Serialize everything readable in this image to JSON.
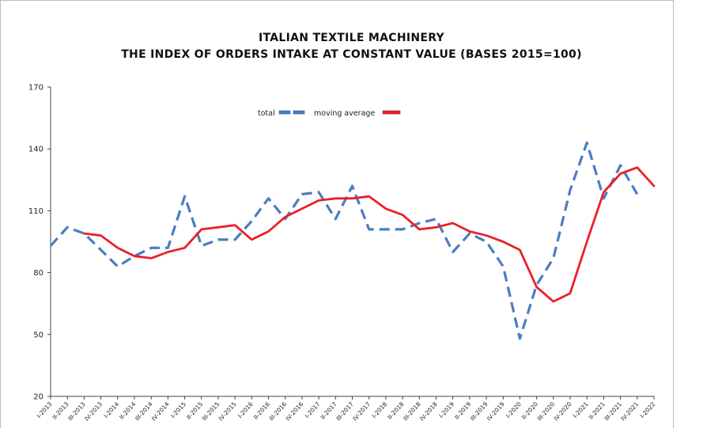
{
  "chart_data": {
    "type": "line",
    "title": "ITALIAN TEXTILE MACHINERY",
    "subtitle": "THE INDEX OF ORDERS INTAKE AT CONSTANT VALUE (BASES 2015=100)",
    "xlabel": "",
    "ylabel": "",
    "ylim": [
      20,
      170
    ],
    "yticks": [
      20,
      50,
      80,
      110,
      140,
      170
    ],
    "grid": false,
    "legend_position": "top-center",
    "categories": [
      "I-2013",
      "II-2013",
      "III-2013",
      "IV-2013",
      "I-2014",
      "II-2014",
      "III-2014",
      "IV-2014",
      "I-2015",
      "II-2015",
      "III-2015",
      "IV-2015",
      "I-2016",
      "II-2016",
      "III-2016",
      "IV-2016",
      "I-2017",
      "II-2017",
      "III-2017",
      "IV-2017",
      "I-2018",
      "II-2018",
      "III-2018",
      "IV-2018",
      "I-2019",
      "II-2019",
      "III-2019",
      "IV-2019",
      "I-2020",
      "II-2020",
      "III-2020",
      "IV-2020",
      "I-2021",
      "II-2021",
      "III-2021",
      "IV-2021",
      "I-2022"
    ],
    "series": [
      {
        "name": "total",
        "color": "#4a7ec0",
        "style": "dashed",
        "values": [
          93,
          102,
          99,
          91,
          83,
          88,
          92,
          92,
          117,
          93,
          96,
          96,
          105,
          116,
          106,
          118,
          119,
          106,
          122,
          101,
          101,
          101,
          104,
          106,
          90,
          99,
          95,
          83,
          48,
          74,
          87,
          120,
          143,
          116,
          132,
          118,
          null
        ]
      },
      {
        "name": "moving average",
        "color": "#e8202a",
        "style": "solid",
        "values": [
          null,
          null,
          99,
          98,
          92,
          88,
          87,
          90,
          92,
          101,
          102,
          103,
          96,
          100,
          107,
          111,
          115,
          116,
          116,
          117,
          111,
          108,
          101,
          102,
          104,
          100,
          98,
          95,
          91,
          73,
          66,
          70,
          95,
          119,
          128,
          131,
          122
        ]
      }
    ]
  }
}
